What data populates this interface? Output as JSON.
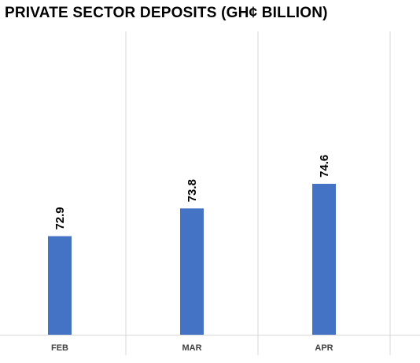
{
  "chart_data": {
    "type": "bar",
    "title": "PRIVATE SECTOR DEPOSITS (GH¢ BILLION)",
    "categories": [
      "FEB",
      "MAR",
      "APR"
    ],
    "values": [
      72.9,
      73.8,
      74.6
    ],
    "data_labels": [
      "72.9",
      "73.8",
      "74.6"
    ],
    "xlabel": "",
    "ylabel": "",
    "grid": "vertical category separators",
    "legend": "none",
    "bar_color": "#4472C4",
    "grid_color": "#D9D9D9"
  }
}
